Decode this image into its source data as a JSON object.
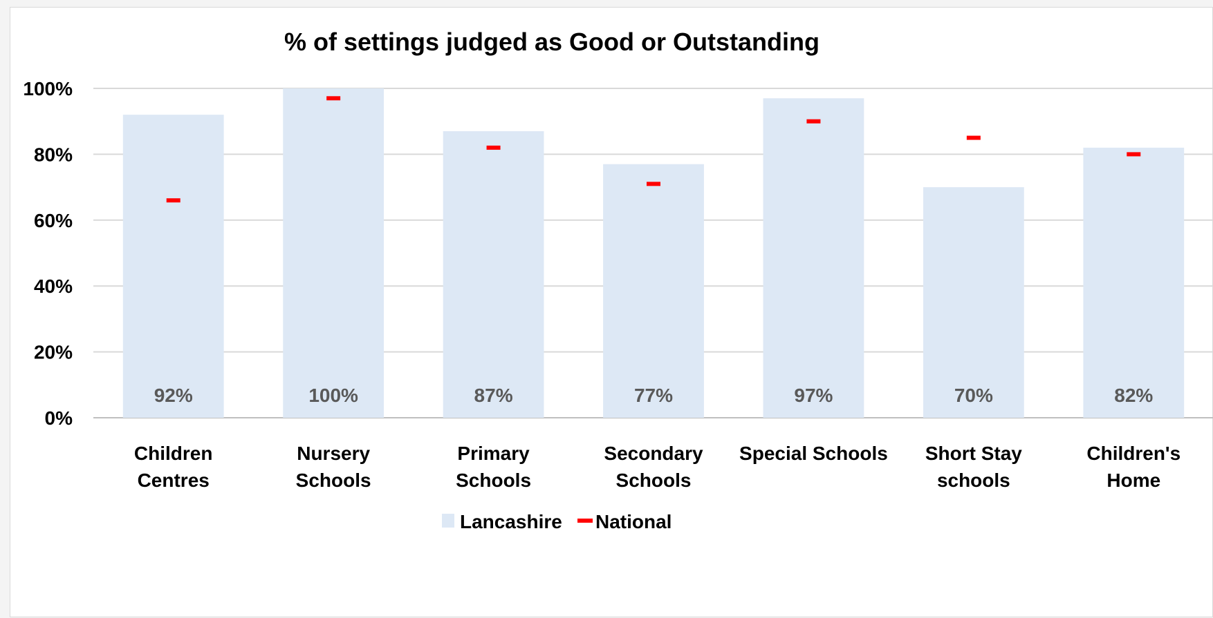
{
  "chart_data": {
    "type": "bar",
    "title": "% of settings judged as Good or Outstanding",
    "categories": [
      [
        "Children",
        "Centres"
      ],
      [
        "Nursery",
        "Schools"
      ],
      [
        "Primary",
        "Schools"
      ],
      [
        "Secondary",
        "Schools"
      ],
      [
        "Special Schools"
      ],
      [
        "Short Stay",
        "schools"
      ],
      [
        "Children's",
        "Home"
      ]
    ],
    "series": [
      {
        "name": "Lancashire",
        "kind": "bar",
        "color": "#dde8f5",
        "values": [
          92,
          100,
          87,
          77,
          97,
          70,
          82
        ]
      },
      {
        "name": "National",
        "kind": "marker",
        "color": "#ff0000",
        "values": [
          66,
          97,
          82,
          71,
          90,
          85,
          80
        ]
      }
    ],
    "data_labels": [
      "92%",
      "100%",
      "87%",
      "77%",
      "97%",
      "70%",
      "82%"
    ],
    "yticks": [
      "0%",
      "20%",
      "40%",
      "60%",
      "80%",
      "100%"
    ],
    "ylim": [
      0,
      100
    ],
    "grid": true,
    "legend_position": "bottom"
  }
}
